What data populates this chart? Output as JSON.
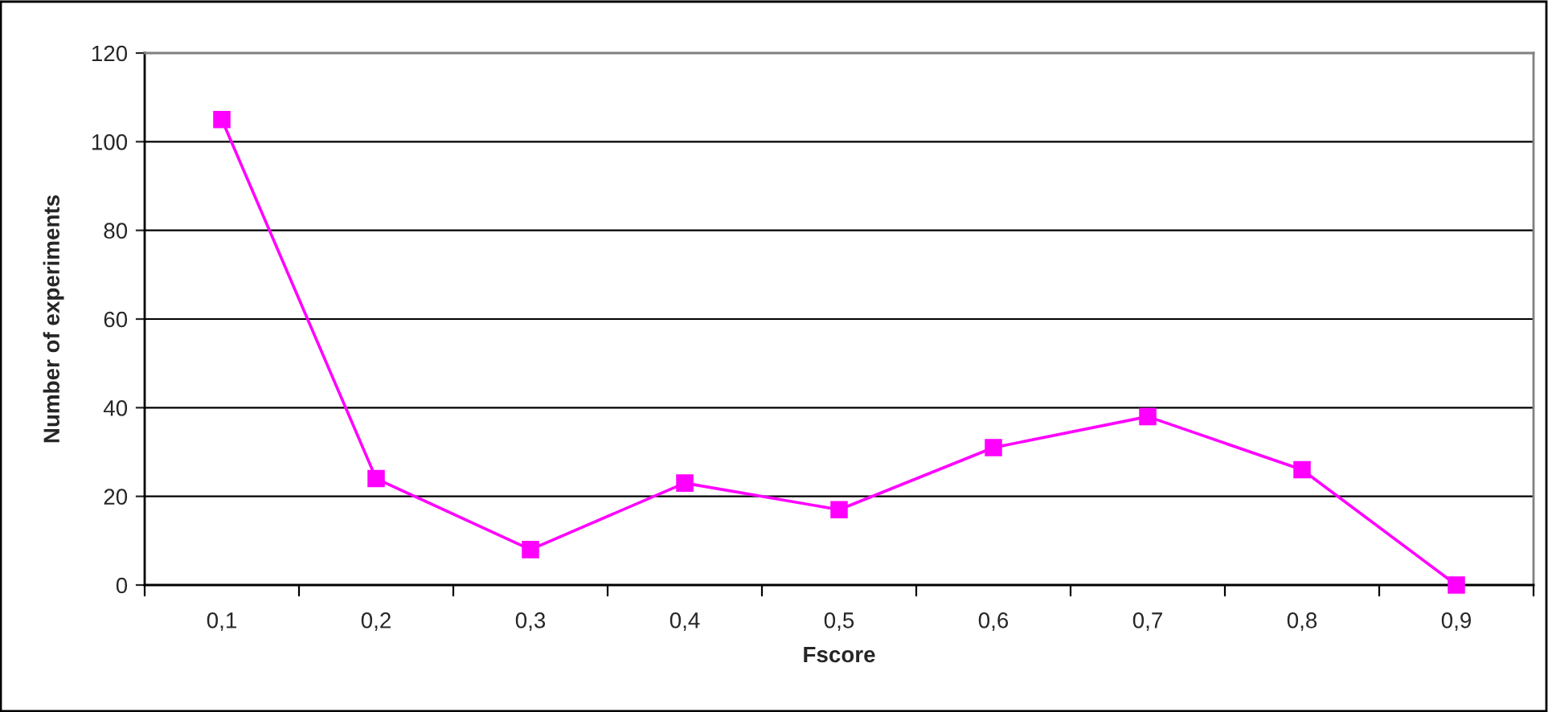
{
  "chart_data": {
    "type": "line",
    "xlabel": "Fscore",
    "ylabel": "Number of experiments",
    "categories": [
      "0,1",
      "0,2",
      "0,3",
      "0,4",
      "0,5",
      "0,6",
      "0,7",
      "0,8",
      "0,9"
    ],
    "series": [
      {
        "color": "#ff00ff",
        "values": [
          105,
          24,
          8,
          23,
          17,
          31,
          38,
          26,
          0
        ]
      }
    ],
    "ylim": [
      0,
      120
    ],
    "yticks": [
      0,
      20,
      40,
      60,
      80,
      100,
      120
    ],
    "grid": "y",
    "marker": "square",
    "line_style": "solid"
  }
}
